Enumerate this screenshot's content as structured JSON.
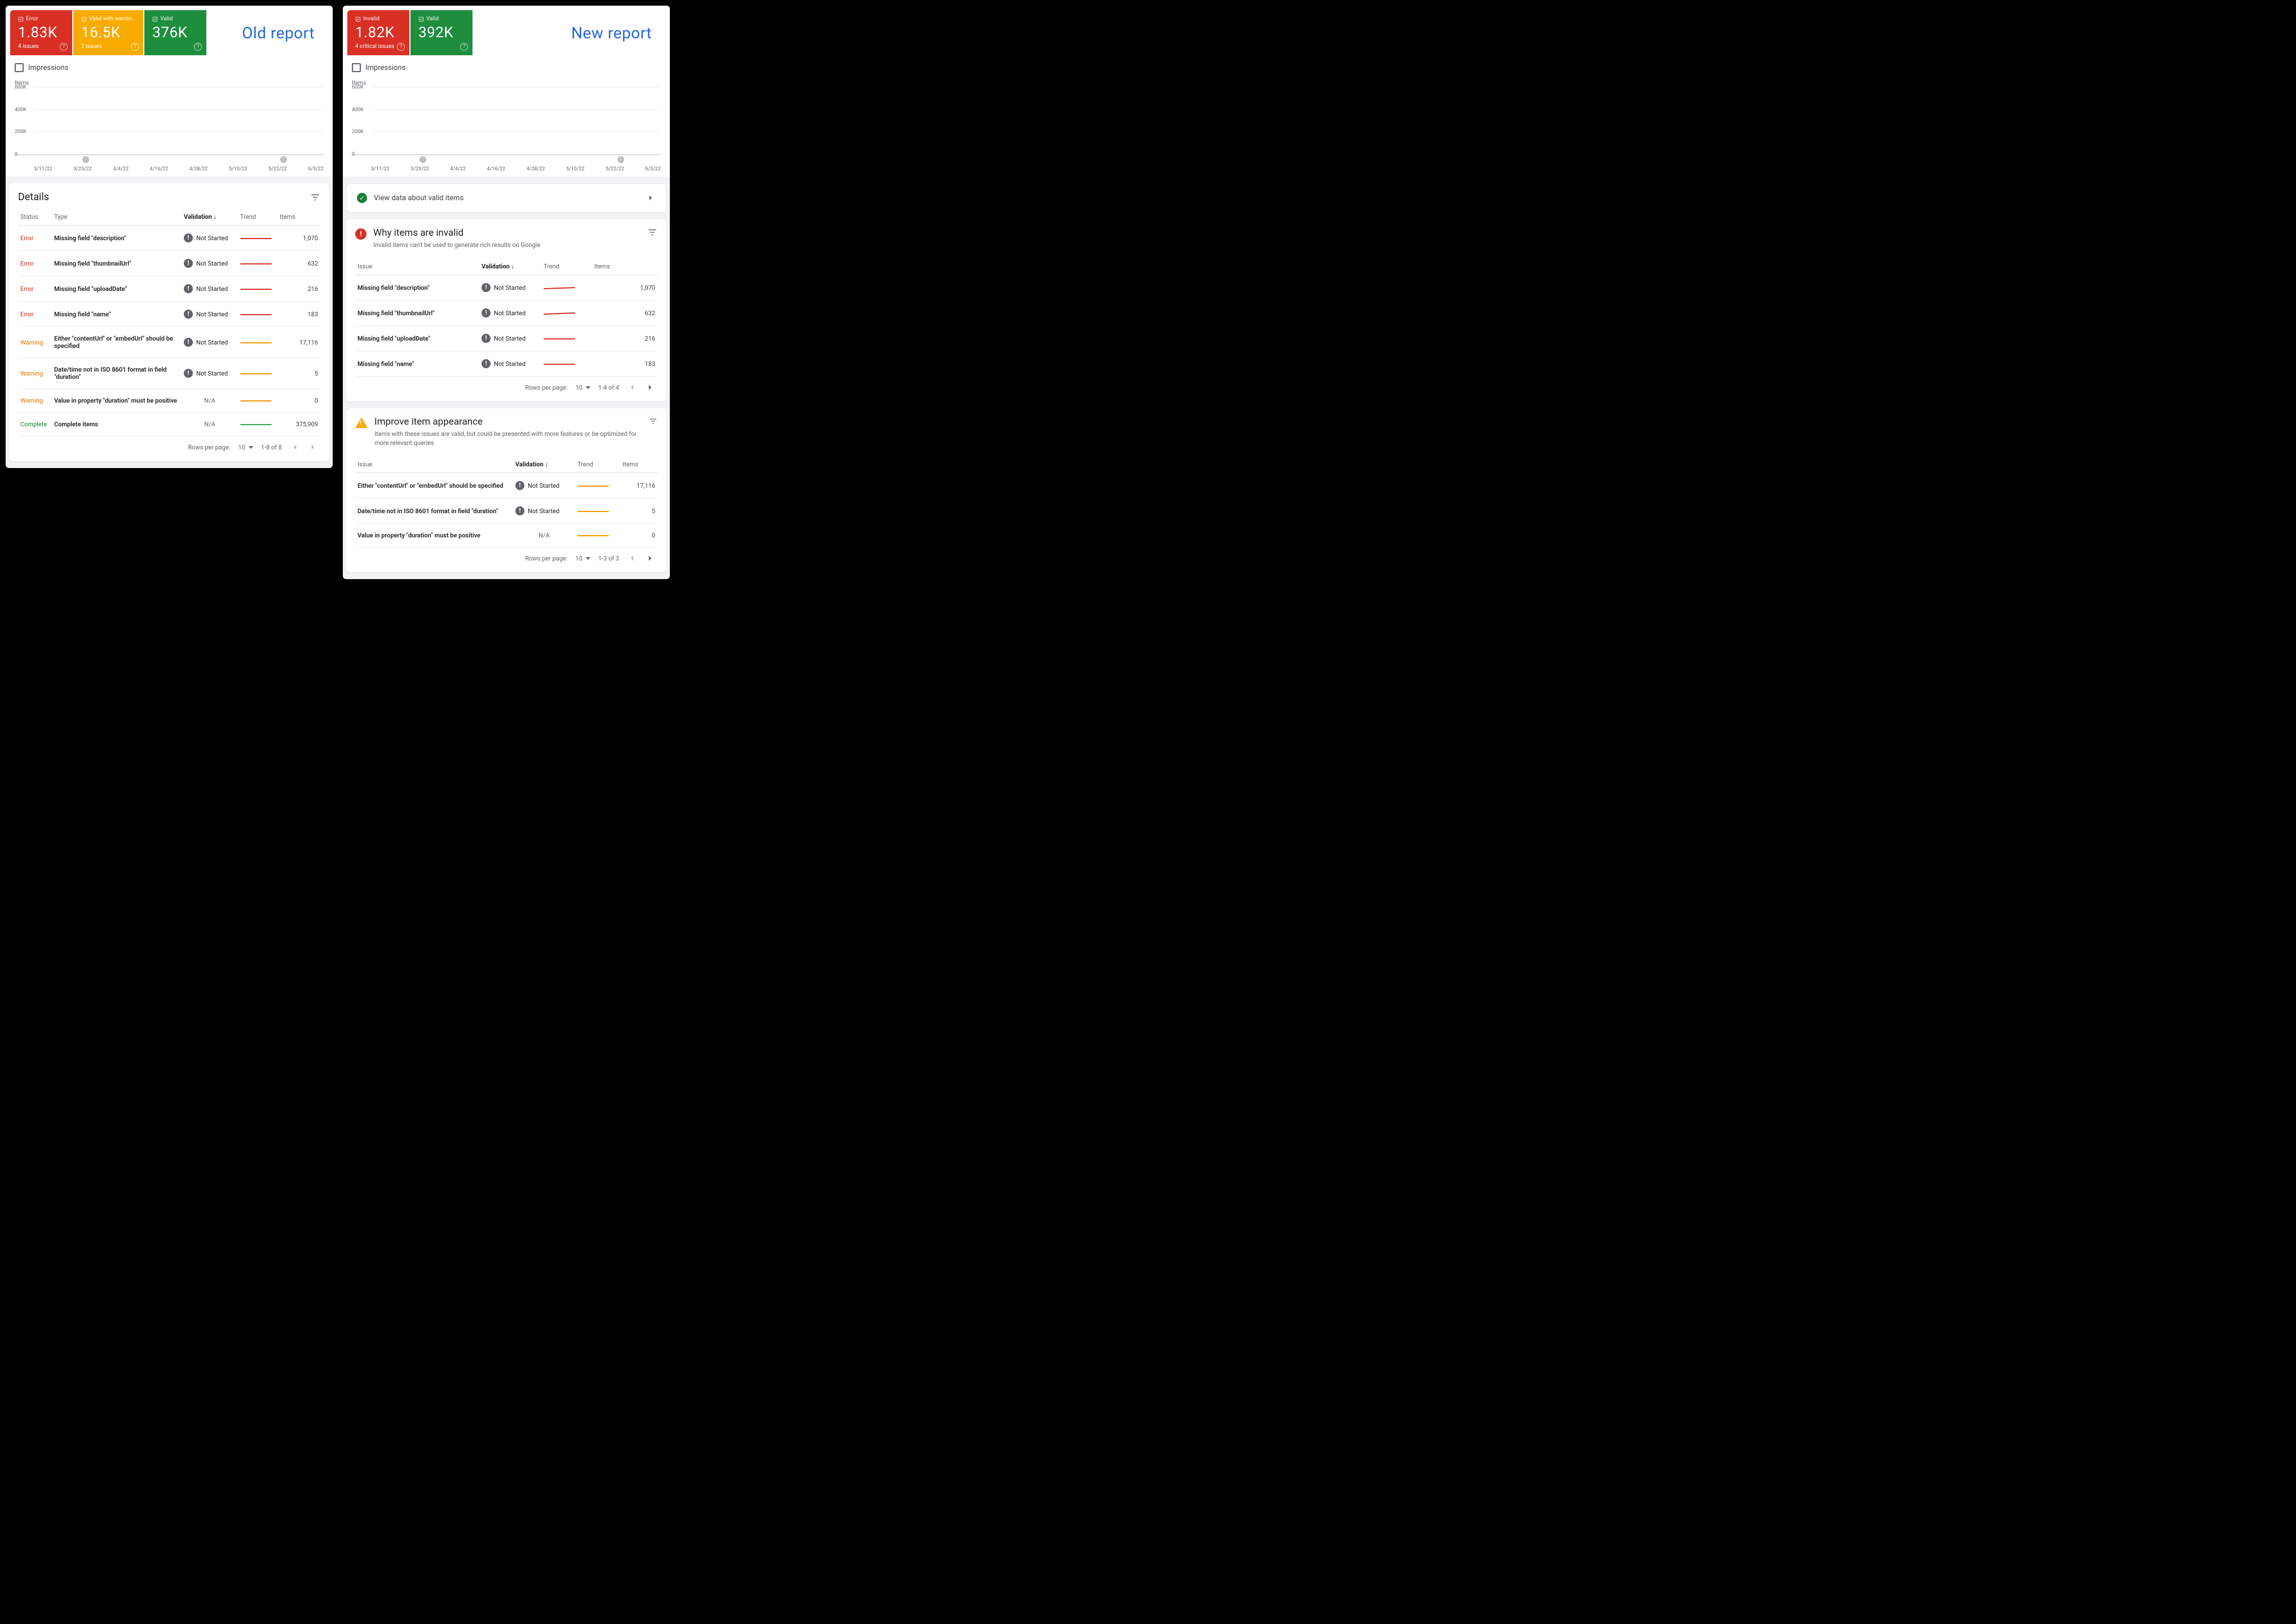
{
  "colors": {
    "error": "#d93025",
    "warning": "#f9ab00",
    "warning_text": "#e37400",
    "valid": "#1e8e3e",
    "green_bar": "#34a853",
    "orange_band": "#f29900",
    "red_band": "#d93025",
    "link_blue": "#2568d8",
    "grey_text": "#5f6368",
    "divider": "#e0e0e0",
    "grid": "#eceff1",
    "not_started_dot": "#5f6368",
    "bg_panel": "#f1f3f4",
    "dot_grey": "#bdbdbd"
  },
  "old": {
    "label": "Old report",
    "tiles": [
      {
        "name": "error",
        "title": "Error",
        "value": "1.83K",
        "sub": "4 issues",
        "bg": "#d93025"
      },
      {
        "name": "warning",
        "title": "Valid with warnin…",
        "value": "16.5K",
        "sub": "2 issues",
        "bg": "#f9ab00"
      },
      {
        "name": "valid",
        "title": "Valid",
        "value": "376K",
        "sub": "",
        "bg": "#1e8e3e"
      }
    ]
  },
  "new": {
    "label": "New report",
    "tiles": [
      {
        "name": "invalid",
        "title": "Invalid",
        "value": "1.82K",
        "sub": "4 critical issues",
        "bg": "#d93025"
      },
      {
        "name": "valid",
        "title": "Valid",
        "value": "392K",
        "sub": "",
        "bg": "#1e8e3e"
      }
    ]
  },
  "impressions_label": "Impressions",
  "chart": {
    "y_title": "Items",
    "ylim": [
      0,
      600000
    ],
    "yticks": [
      "0",
      "200K",
      "400K",
      "600K"
    ],
    "x_labels": [
      "3/11/22",
      "3/23/22",
      "4/4/22",
      "4/16/22",
      "4/28/22",
      "5/10/22",
      "5/22/22",
      "6/3/22"
    ],
    "markers_pct": [
      23,
      87
    ],
    "green_values": [
      432,
      425,
      428,
      420,
      418,
      430,
      435,
      428,
      422,
      425,
      430,
      434,
      438,
      432,
      428,
      420,
      422,
      430,
      436,
      440,
      444,
      448,
      452,
      456,
      448,
      432,
      418,
      410,
      402,
      398,
      404,
      410,
      416,
      420,
      424,
      420,
      414,
      408,
      404,
      408,
      412,
      416,
      420,
      416,
      410,
      406,
      404,
      400,
      398,
      396,
      394,
      398,
      404,
      408,
      412,
      410,
      408,
      404,
      400,
      398,
      400,
      402,
      404,
      406,
      404,
      402,
      400,
      398,
      396,
      394,
      396,
      398,
      400,
      398,
      396,
      394,
      392,
      394,
      396,
      394,
      392,
      394,
      396,
      394
    ],
    "old_orange_value": 17,
    "old_red_value": 2
  },
  "details": {
    "title": "Details",
    "columns": {
      "status": "Status",
      "type": "Type",
      "validation": "Validation",
      "trend": "Trend",
      "items": "Items"
    },
    "rows": [
      {
        "status": "Error",
        "statusClass": "status-error",
        "type": "Missing field \"description\"",
        "val": "Not Started",
        "valDot": true,
        "trend": "red",
        "items": "1,070"
      },
      {
        "status": "Error",
        "statusClass": "status-error",
        "type": "Missing field \"thumbnailUrl\"",
        "val": "Not Started",
        "valDot": true,
        "trend": "red",
        "items": "632"
      },
      {
        "status": "Error",
        "statusClass": "status-error",
        "type": "Missing field \"uploadDate\"",
        "val": "Not Started",
        "valDot": true,
        "trend": "red",
        "items": "216"
      },
      {
        "status": "Error",
        "statusClass": "status-error",
        "type": "Missing field \"name\"",
        "val": "Not Started",
        "valDot": true,
        "trend": "red",
        "items": "183"
      },
      {
        "status": "Warning",
        "statusClass": "status-warn",
        "type": "Either \"contentUrl\" or \"embedUrl\" should be specified",
        "val": "Not Started",
        "valDot": true,
        "trend": "orange",
        "items": "17,116"
      },
      {
        "status": "Warning",
        "statusClass": "status-warn",
        "type": "Date/time not in ISO 8601 format in field \"duration\"",
        "val": "Not Started",
        "valDot": true,
        "trend": "orange",
        "items": "5"
      },
      {
        "status": "Warning",
        "statusClass": "status-warn",
        "type": "Value in property \"duration\" must be positive",
        "val": "N/A",
        "valDot": false,
        "trend": "orange",
        "items": "0"
      },
      {
        "status": "Complete",
        "statusClass": "status-ok",
        "type": "Complete items",
        "val": "N/A",
        "valDot": false,
        "trend": "green",
        "items": "375,909"
      }
    ],
    "pager": {
      "rows_label": "Rows per page:",
      "rows": "10",
      "range": "1-8 of 8"
    }
  },
  "valid_banner": {
    "text": "View data about valid items"
  },
  "invalid_section": {
    "title": "Why items are invalid",
    "sub": "Invalid items can't be used to generate rich results on Google",
    "columns": {
      "issue": "Issue",
      "validation": "Validation",
      "trend": "Trend",
      "items": "Items"
    },
    "rows": [
      {
        "type": "Missing field \"description\"",
        "val": "Not Started",
        "trend": "squiggle",
        "items": "1,070"
      },
      {
        "type": "Missing field \"thumbnailUrl\"",
        "val": "Not Started",
        "trend": "squiggle",
        "items": "632"
      },
      {
        "type": "Missing field \"uploadDate\"",
        "val": "Not Started",
        "trend": "red",
        "items": "216"
      },
      {
        "type": "Missing field \"name\"",
        "val": "Not Started",
        "trend": "red",
        "items": "183"
      }
    ],
    "pager": {
      "rows_label": "Rows per page:",
      "rows": "10",
      "range": "1-4 of 4"
    }
  },
  "improve_section": {
    "title": "Improve item appearance",
    "sub": "Items with these issues are valid, but could be presented with more features or be optimized for more relevant queries",
    "columns": {
      "issue": "Issue",
      "validation": "Validation",
      "trend": "Trend",
      "items": "Items"
    },
    "rows": [
      {
        "type": "Either \"contentUrl\" or \"embedUrl\" should be specified",
        "val": "Not Started",
        "valDot": true,
        "trend": "orange",
        "items": "17,116"
      },
      {
        "type": "Date/time not in ISO 8601 format in field \"duration\"",
        "val": "Not Started",
        "valDot": true,
        "trend": "orange",
        "items": "5"
      },
      {
        "type": "Value in property \"duration\" must be positive",
        "val": "N/A",
        "valDot": false,
        "trend": "orange",
        "items": "0"
      }
    ],
    "pager": {
      "rows_label": "Rows per page:",
      "rows": "10",
      "range": "1-3 of 3"
    }
  }
}
